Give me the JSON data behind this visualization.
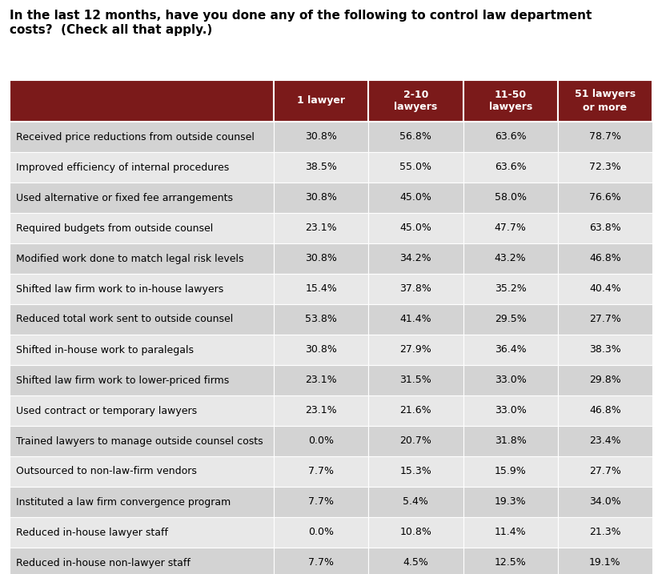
{
  "title_line1": "In the last 12 months, have you done any of the following to control law department",
  "title_line2": "costs?  (Check all that apply.)",
  "col_headers": [
    "1 lawyer",
    "2-10\nlawyers",
    "11-50\nlawyers",
    "51 lawyers\nor more"
  ],
  "rows": [
    {
      "label": "Received price reductions from outside counsel",
      "vals": [
        "30.8%",
        "56.8%",
        "63.6%",
        "78.7%"
      ]
    },
    {
      "label": "Improved efficiency of internal procedures",
      "vals": [
        "38.5%",
        "55.0%",
        "63.6%",
        "72.3%"
      ]
    },
    {
      "label": "Used alternative or fixed fee arrangements",
      "vals": [
        "30.8%",
        "45.0%",
        "58.0%",
        "76.6%"
      ]
    },
    {
      "label": "Required budgets from outside counsel",
      "vals": [
        "23.1%",
        "45.0%",
        "47.7%",
        "63.8%"
      ]
    },
    {
      "label": "Modified work done to match legal risk levels",
      "vals": [
        "30.8%",
        "34.2%",
        "43.2%",
        "46.8%"
      ]
    },
    {
      "label": "Shifted law firm work to in-house lawyers",
      "vals": [
        "15.4%",
        "37.8%",
        "35.2%",
        "40.4%"
      ]
    },
    {
      "label": "Reduced total work sent to outside counsel",
      "vals": [
        "53.8%",
        "41.4%",
        "29.5%",
        "27.7%"
      ]
    },
    {
      "label": "Shifted in-house work to paralegals",
      "vals": [
        "30.8%",
        "27.9%",
        "36.4%",
        "38.3%"
      ]
    },
    {
      "label": "Shifted law firm work to lower-priced firms",
      "vals": [
        "23.1%",
        "31.5%",
        "33.0%",
        "29.8%"
      ]
    },
    {
      "label": "Used contract or temporary lawyers",
      "vals": [
        "23.1%",
        "21.6%",
        "33.0%",
        "46.8%"
      ]
    },
    {
      "label": "Trained lawyers to manage outside counsel costs",
      "vals": [
        "0.0%",
        "20.7%",
        "31.8%",
        "23.4%"
      ]
    },
    {
      "label": "Outsourced to non-law-firm vendors",
      "vals": [
        "7.7%",
        "15.3%",
        "15.9%",
        "27.7%"
      ]
    },
    {
      "label": "Instituted a law firm convergence program",
      "vals": [
        "7.7%",
        "5.4%",
        "19.3%",
        "34.0%"
      ]
    },
    {
      "label": "Reduced in-house lawyer staff",
      "vals": [
        "0.0%",
        "10.8%",
        "11.4%",
        "21.3%"
      ]
    },
    {
      "label": "Reduced in-house non-lawyer staff",
      "vals": [
        "7.7%",
        "4.5%",
        "12.5%",
        "19.1%"
      ]
    }
  ],
  "header_bg": "#7B1A1A",
  "header_fg": "#FFFFFF",
  "row_bg_light": "#E8E8E8",
  "row_bg_dark": "#D3D3D3",
  "border_color": "#FFFFFF",
  "text_color": "#000000",
  "fig_bg": "#FFFFFF",
  "title_fontsize": 11.0,
  "header_fontsize": 9.0,
  "cell_fontsize": 9.0,
  "label_fontsize": 9.0
}
